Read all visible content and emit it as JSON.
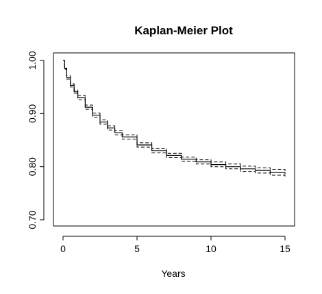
{
  "chart_data": {
    "type": "line",
    "title": "Kaplan-Meier Plot",
    "xlabel": "Years",
    "ylabel": "",
    "xlim": [
      0,
      15
    ],
    "ylim": [
      0.7,
      1.0
    ],
    "x_ticks": [
      0,
      5,
      10,
      15
    ],
    "x_tick_labels": [
      "0",
      "5",
      "10",
      "15"
    ],
    "y_ticks": [
      0.7,
      0.8,
      0.9,
      1.0
    ],
    "y_tick_labels": [
      "0.70",
      "0.80",
      "0.90",
      "1.00"
    ],
    "grid": false,
    "legend": false,
    "x": [
      0,
      0.1,
      0.25,
      0.5,
      0.75,
      1,
      1.5,
      2,
      2.5,
      3,
      3.5,
      4,
      5,
      6,
      7,
      8,
      9,
      10,
      11,
      12,
      13,
      14,
      15
    ],
    "series": [
      {
        "role": "estimate",
        "style": "solid",
        "values": [
          1.0,
          0.985,
          0.968,
          0.953,
          0.941,
          0.93,
          0.912,
          0.897,
          0.884,
          0.873,
          0.864,
          0.856,
          0.841,
          0.83,
          0.821,
          0.814,
          0.809,
          0.804,
          0.8,
          0.796,
          0.793,
          0.789,
          0.786
        ]
      },
      {
        "role": "upper-ci",
        "style": "dashed",
        "values": [
          1.0,
          0.987,
          0.971,
          0.956,
          0.944,
          0.934,
          0.916,
          0.901,
          0.888,
          0.877,
          0.868,
          0.86,
          0.845,
          0.834,
          0.825,
          0.818,
          0.813,
          0.809,
          0.805,
          0.801,
          0.798,
          0.795,
          0.792
        ]
      },
      {
        "role": "lower-ci",
        "style": "dashed",
        "values": [
          1.0,
          0.983,
          0.965,
          0.95,
          0.938,
          0.926,
          0.908,
          0.893,
          0.88,
          0.869,
          0.86,
          0.852,
          0.837,
          0.826,
          0.817,
          0.81,
          0.805,
          0.8,
          0.796,
          0.791,
          0.788,
          0.784,
          0.78
        ]
      }
    ]
  }
}
